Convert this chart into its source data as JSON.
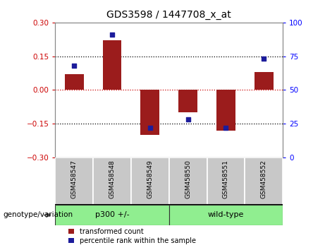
{
  "title": "GDS3598 / 1447708_x_at",
  "samples": [
    "GSM458547",
    "GSM458548",
    "GSM458549",
    "GSM458550",
    "GSM458551",
    "GSM458552"
  ],
  "transformed_counts": [
    0.07,
    0.22,
    -0.2,
    -0.1,
    -0.18,
    0.08
  ],
  "percentile_ranks": [
    68,
    91,
    22,
    28,
    22,
    73
  ],
  "ylim_left": [
    -0.3,
    0.3
  ],
  "ylim_right": [
    0,
    100
  ],
  "yticks_left": [
    -0.3,
    -0.15,
    0,
    0.15,
    0.3
  ],
  "yticks_right": [
    0,
    25,
    50,
    75,
    100
  ],
  "bar_color": "#9B1C1C",
  "dot_color": "#1C1C9B",
  "hline0_color": "#CC0000",
  "hline_color": "#000000",
  "group1_label": "p300 +/-",
  "group2_label": "wild-type",
  "group_color": "#90EE90",
  "genotype_label": "genotype/variation",
  "legend_bar_label": "transformed count",
  "legend_dot_label": "percentile rank within the sample",
  "plot_bg_color": "#FFFFFF",
  "fig_bg_color": "#FFFFFF",
  "label_box_color": "#C8C8C8",
  "bar_width": 0.5
}
